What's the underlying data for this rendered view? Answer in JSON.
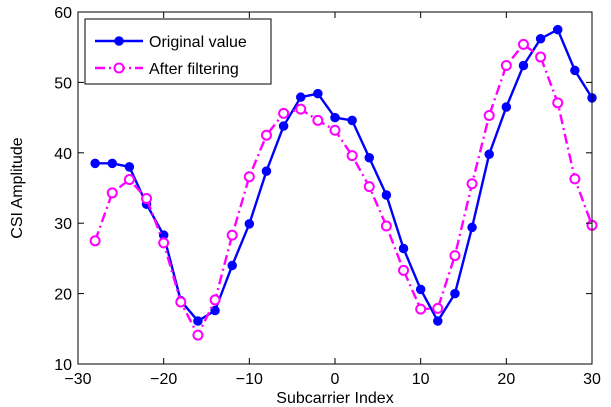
{
  "chart_data": {
    "type": "line",
    "xlabel": "Subcarrier Index",
    "ylabel": "CSI Amplitude",
    "xlim": [
      -30,
      30
    ],
    "ylim": [
      10,
      60
    ],
    "xticks": [
      -30,
      -20,
      -10,
      0,
      10,
      20,
      30
    ],
    "yticks": [
      10,
      20,
      30,
      40,
      50,
      60
    ],
    "grid": false,
    "legend_position": "top-left",
    "series": [
      {
        "name": "Original value",
        "color": "#0000ff",
        "line_style": "solid",
        "marker": "filled-circle",
        "x": [
          -28,
          -26,
          -24,
          -22,
          -20,
          -18,
          -16,
          -14,
          -12,
          -10,
          -8,
          -6,
          -4,
          -2,
          0,
          2,
          4,
          6,
          8,
          10,
          12,
          14,
          16,
          18,
          20,
          22,
          24,
          26,
          28,
          30
        ],
        "y": [
          38.5,
          38.5,
          38.0,
          32.7,
          28.3,
          19.0,
          16.1,
          17.6,
          24.0,
          29.9,
          37.4,
          43.8,
          47.9,
          48.4,
          45.0,
          44.6,
          39.3,
          34.0,
          26.4,
          20.6,
          16.1,
          20.0,
          29.4,
          39.8,
          46.5,
          52.4,
          56.2,
          57.5,
          51.7,
          47.8
        ]
      },
      {
        "name": "After filtering",
        "color": "#ff00ff",
        "line_style": "dash-dot",
        "marker": "open-circle",
        "x": [
          -28,
          -26,
          -24,
          -22,
          -20,
          -18,
          -16,
          -14,
          -12,
          -10,
          -8,
          -6,
          -4,
          -2,
          0,
          2,
          4,
          6,
          8,
          10,
          12,
          14,
          16,
          18,
          20,
          22,
          24,
          26,
          28,
          30
        ],
        "y": [
          27.5,
          34.3,
          36.2,
          33.5,
          27.2,
          18.8,
          14.1,
          19.1,
          28.3,
          36.6,
          42.5,
          45.6,
          46.2,
          44.6,
          43.2,
          39.6,
          35.2,
          29.6,
          23.3,
          17.8,
          17.9,
          25.4,
          35.6,
          45.3,
          52.4,
          55.4,
          53.6,
          47.1,
          36.3,
          29.7
        ]
      }
    ]
  }
}
